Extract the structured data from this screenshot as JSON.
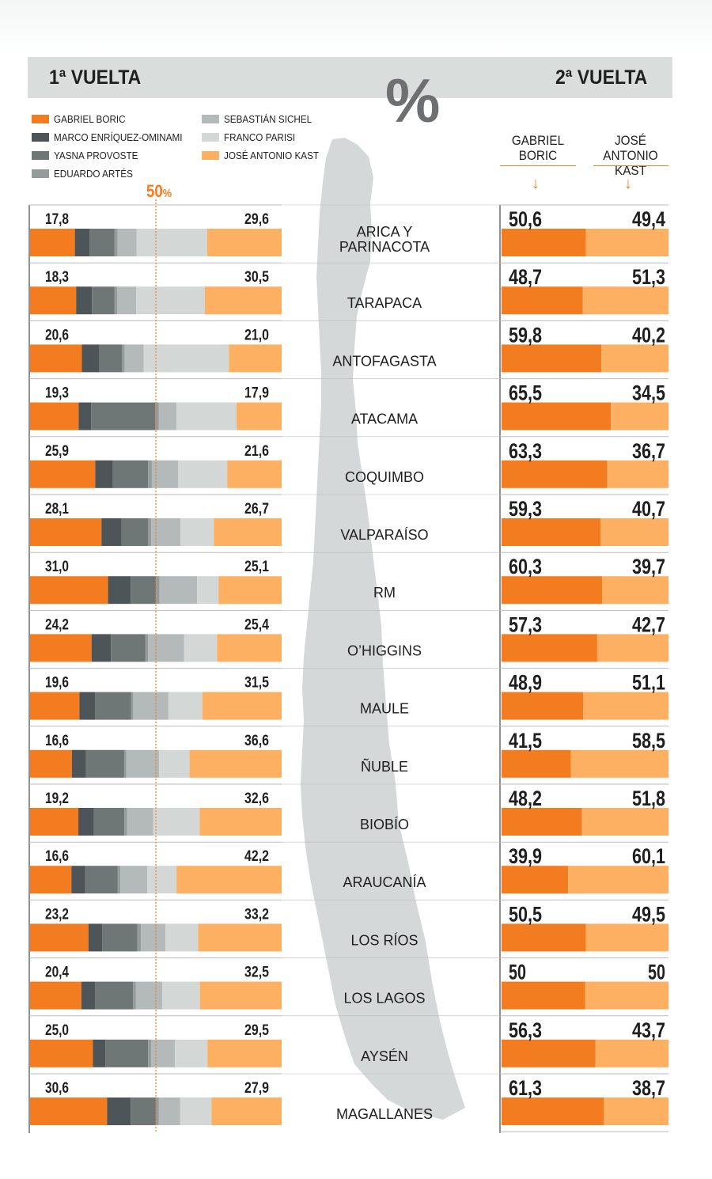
{
  "header": {
    "first_round": "1ª VUELTA",
    "second_round": "2ª VUELTA",
    "percent_symbol": "%"
  },
  "fifty_marker": {
    "value": "50",
    "unit": "%"
  },
  "candidates_second_round": [
    {
      "line1": "GABRIEL",
      "line2": "BORIC",
      "color": "#f47c20"
    },
    {
      "line1": "JOSÉ ANTONIO",
      "line2": "KAST",
      "color": "#fdb061"
    }
  ],
  "legend": [
    {
      "name": "GABRIEL BORIC",
      "color": "#f47c20"
    },
    {
      "name": "MARCO ENRÍQUEZ-OMINAMI",
      "color": "#4d5559"
    },
    {
      "name": "YASNA PROVOSTE",
      "color": "#6e7775"
    },
    {
      "name": "EDUARDO ARTÉS",
      "color": "#959b9a"
    },
    {
      "name": "SEBASTIÁN SICHEL",
      "color": "#b4b9b9"
    },
    {
      "name": "FRANCO PARISI",
      "color": "#d3d7d6"
    },
    {
      "name": "JOSÉ ANTONIO KAST",
      "color": "#fdb061"
    }
  ],
  "chart_data": [
    {
      "type": "bar",
      "stacked": true,
      "orientation": "horizontal",
      "round": "1ª VUELTA",
      "reference_line": 50,
      "xlim": [
        0,
        100
      ],
      "categories": [
        "ARICA Y PARINACOTA",
        "TARAPACA",
        "ANTOFAGASTA",
        "ATACAMA",
        "COQUIMBO",
        "VALPARAÍSO",
        "RM",
        "O’HIGGINS",
        "MAULE",
        "ÑUBLE",
        "BIOBÍO",
        "ARAUCANÍA",
        "LOS RÍOS",
        "LOS LAGOS",
        "AYSÉN",
        "MAGALLANES"
      ],
      "series": [
        {
          "name": "GABRIEL BORIC",
          "values": [
            17.8,
            18.3,
            20.6,
            19.3,
            25.9,
            28.1,
            31.0,
            24.2,
            19.6,
            16.6,
            19.2,
            16.6,
            23.2,
            20.4,
            25.0,
            30.6
          ]
        },
        {
          "name": "MARCO ENRÍQUEZ-OMINAMI",
          "values": [
            5.8,
            6.3,
            7.0,
            5.0,
            7.0,
            7.9,
            9.0,
            7.6,
            6.3,
            5.6,
            6.1,
            5.5,
            5.5,
            5.5,
            4.9,
            9.4
          ]
        },
        {
          "name": "YASNA PROVOSTE",
          "values": [
            10.0,
            9.0,
            9.0,
            25.5,
            14.0,
            10.5,
            10.1,
            13.6,
            14.2,
            15.2,
            12.2,
            13.0,
            14.0,
            15.0,
            17.0,
            10.0
          ]
        },
        {
          "name": "EDUARDO ARTÉS",
          "values": [
            1.2,
            1.0,
            1.0,
            1.4,
            1.5,
            1.2,
            1.3,
            1.0,
            0.9,
            0.9,
            1.1,
            1.2,
            1.4,
            1.2,
            1.2,
            1.1
          ]
        },
        {
          "name": "SEBASTIÁN SICHEL",
          "values": [
            7.5,
            7.6,
            7.6,
            7.0,
            10.5,
            11.5,
            15.0,
            14.2,
            14.0,
            13.0,
            10.3,
            10.8,
            9.7,
            10.5,
            9.5,
            8.6
          ]
        },
        {
          "name": "FRANCO PARISI",
          "values": [
            28.1,
            27.3,
            33.8,
            23.9,
            19.5,
            13.1,
            8.5,
            13.0,
            13.5,
            12.1,
            18.5,
            11.7,
            13.0,
            14.9,
            12.9,
            12.4
          ]
        },
        {
          "name": "JOSÉ ANTONIO KAST",
          "values": [
            29.6,
            30.5,
            21.0,
            17.9,
            21.6,
            26.7,
            25.1,
            25.4,
            31.5,
            36.6,
            32.6,
            42.2,
            33.2,
            32.5,
            29.5,
            27.9
          ]
        }
      ],
      "labels_left": [
        "17,8",
        "18,3",
        "20,6",
        "19,3",
        "25,9",
        "28,1",
        "31,0",
        "24,2",
        "19,6",
        "16,6",
        "19,2",
        "16,6",
        "23,2",
        "20,4",
        "25,0",
        "30,6"
      ],
      "labels_right": [
        "29,6",
        "30,5",
        "21,0",
        "17,9",
        "21,6",
        "26,7",
        "25,1",
        "25,4",
        "31,5",
        "36,6",
        "32,6",
        "42,2",
        "33,2",
        "32,5",
        "29,5",
        "27,9"
      ]
    },
    {
      "type": "bar",
      "stacked": true,
      "orientation": "horizontal",
      "round": "2ª VUELTA",
      "xlim": [
        0,
        100
      ],
      "categories": [
        "ARICA Y PARINACOTA",
        "TARAPACA",
        "ANTOFAGASTA",
        "ATACAMA",
        "COQUIMBO",
        "VALPARAÍSO",
        "RM",
        "O’HIGGINS",
        "MAULE",
        "ÑUBLE",
        "BIOBÍO",
        "ARAUCANÍA",
        "LOS RÍOS",
        "LOS LAGOS",
        "AYSÉN",
        "MAGALLANES"
      ],
      "series": [
        {
          "name": "GABRIEL BORIC",
          "values": [
            50.6,
            48.7,
            59.8,
            65.5,
            63.3,
            59.3,
            60.3,
            57.3,
            48.9,
            41.5,
            48.2,
            39.9,
            50.5,
            50,
            56.3,
            61.3
          ]
        },
        {
          "name": "JOSÉ ANTONIO KAST",
          "values": [
            49.4,
            51.3,
            40.2,
            34.5,
            36.7,
            40.7,
            39.7,
            42.7,
            51.1,
            58.5,
            51.8,
            60.1,
            49.5,
            50,
            43.7,
            38.7
          ]
        }
      ],
      "labels_left": [
        "50,6",
        "48,7",
        "59,8",
        "65,5",
        "63,3",
        "59,3",
        "60,3",
        "57,3",
        "48,9",
        "41,5",
        "48,2",
        "39,9",
        "50,5",
        "50",
        "56,3",
        "61,3"
      ],
      "labels_right": [
        "49,4",
        "51,3",
        "40,2",
        "34,5",
        "36,7",
        "40,7",
        "39,7",
        "42,7",
        "51,1",
        "58,5",
        "51,8",
        "60,1",
        "49,5",
        "50",
        "43,7",
        "38,7"
      ]
    }
  ],
  "region_name_lines": [
    [
      "ARICA Y",
      "PARINACOTA"
    ],
    [
      "TARAPACA"
    ],
    [
      "ANTOFAGASTA"
    ],
    [
      "ATACAMA"
    ],
    [
      "COQUIMBO"
    ],
    [
      "VALPARAÍSO"
    ],
    [
      "RM"
    ],
    [
      "O’HIGGINS"
    ],
    [
      "MAULE"
    ],
    [
      "ÑUBLE"
    ],
    [
      "BIOBÍO"
    ],
    [
      "ARAUCANÍA"
    ],
    [
      "LOS RÍOS"
    ],
    [
      "LOS LAGOS"
    ],
    [
      "AYSÉN"
    ],
    [
      "MAGALLANES"
    ]
  ],
  "map_color": "#d5d8d8"
}
